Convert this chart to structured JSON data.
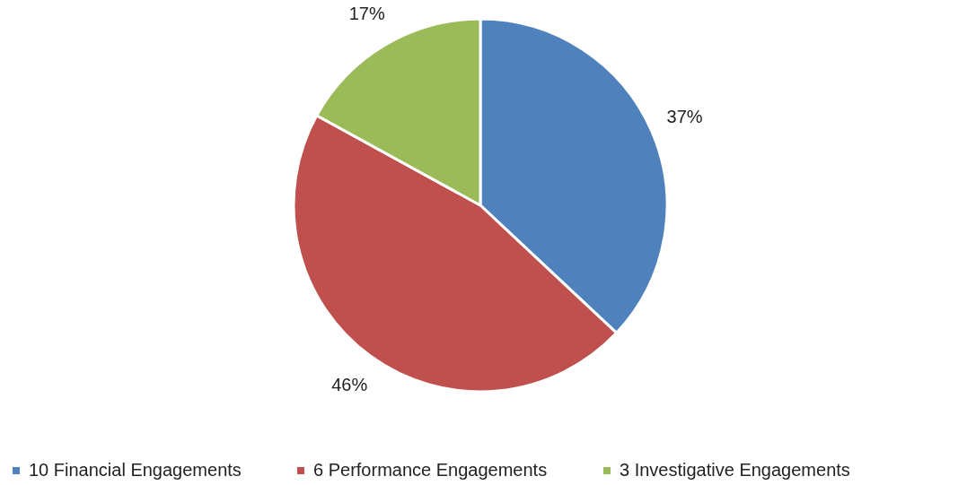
{
  "chart_data": {
    "type": "pie",
    "categories": [
      "10 Financial Engagements",
      "6 Performance Engagements",
      "3 Investigative Engagements"
    ],
    "values": [
      37,
      46,
      17
    ],
    "colors": [
      "#4f81bd",
      "#c0504d",
      "#9bbb59"
    ],
    "value_labels": [
      "37%",
      "46%",
      "17%"
    ],
    "legend": "bottom"
  }
}
